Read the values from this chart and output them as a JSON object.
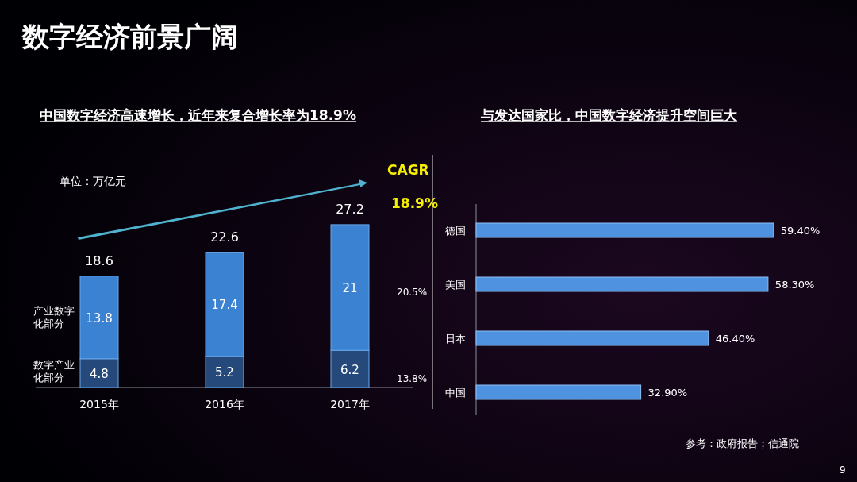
{
  "chart_data": [
    {
      "type": "bar",
      "title": "数字经济前景广阔",
      "subtitle": "中国数字经济高速增长，近年来复合增长率为18.9%",
      "categories": [
        "2015年",
        "2016年",
        "2017年"
      ],
      "stacked": true,
      "data_labels": true,
      "totals": [
        "18.6",
        "22.6",
        "27.2"
      ],
      "series": [
        {
          "name": "数字产业化部分",
          "color": "#24497a",
          "values": [
            4.8,
            5.2,
            6.2
          ]
        },
        {
          "name": "产业数字化部分",
          "color": "#3b82d2",
          "values": [
            13.8,
            17.4,
            21
          ]
        }
      ],
      "annotations": [
        "单位：万亿元",
        "CAGR",
        "18.9%",
        "20.5%",
        "13.8%"
      ]
    },
    {
      "type": "bar",
      "orientation": "horizontal",
      "title": "与发达国家比，中国数字经济提升空间巨大",
      "categories": [
        "德国",
        "美国",
        "日本",
        "中国"
      ],
      "values": [
        59.4,
        58.3,
        46.4,
        32.9
      ],
      "color": "#4f93e0",
      "value_labels": [
        "59.40%",
        "58.30%",
        "46.40%",
        "32.90%"
      ],
      "annotations": [
        "参考：政府报告；信通院",
        "9"
      ]
    }
  ]
}
